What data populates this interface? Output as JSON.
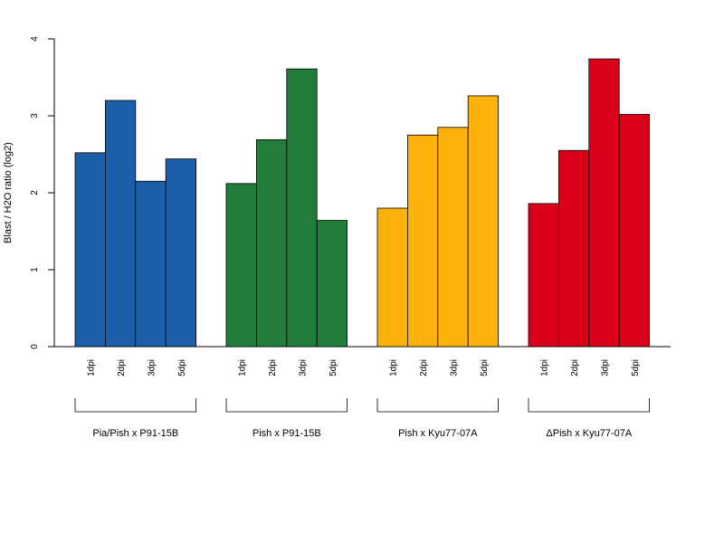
{
  "chart_data": {
    "type": "bar",
    "ylabel": "Blast / H2O ratio (log2)",
    "ylim": [
      0,
      4
    ],
    "yticks": [
      0,
      1,
      2,
      3,
      4
    ],
    "grid": false,
    "legend": "none",
    "categories": [
      "1dpi",
      "2dpi",
      "3dpi",
      "5dpi"
    ],
    "groups": [
      {
        "label": "Pia/Pish x P91-15B",
        "color": "#1c5fa8",
        "values": [
          2.52,
          3.2,
          2.15,
          2.44
        ]
      },
      {
        "label": "Pish x P91-15B",
        "color": "#217d39",
        "values": [
          2.12,
          2.69,
          3.61,
          1.64
        ]
      },
      {
        "label": "Pish x Kyu77-07A",
        "color": "#fdb10b",
        "values": [
          1.8,
          2.75,
          2.85,
          3.26
        ]
      },
      {
        "label": "ΔPish x Kyu77-07A",
        "color": "#db0019",
        "values": [
          1.86,
          2.55,
          3.74,
          3.02
        ]
      }
    ]
  }
}
